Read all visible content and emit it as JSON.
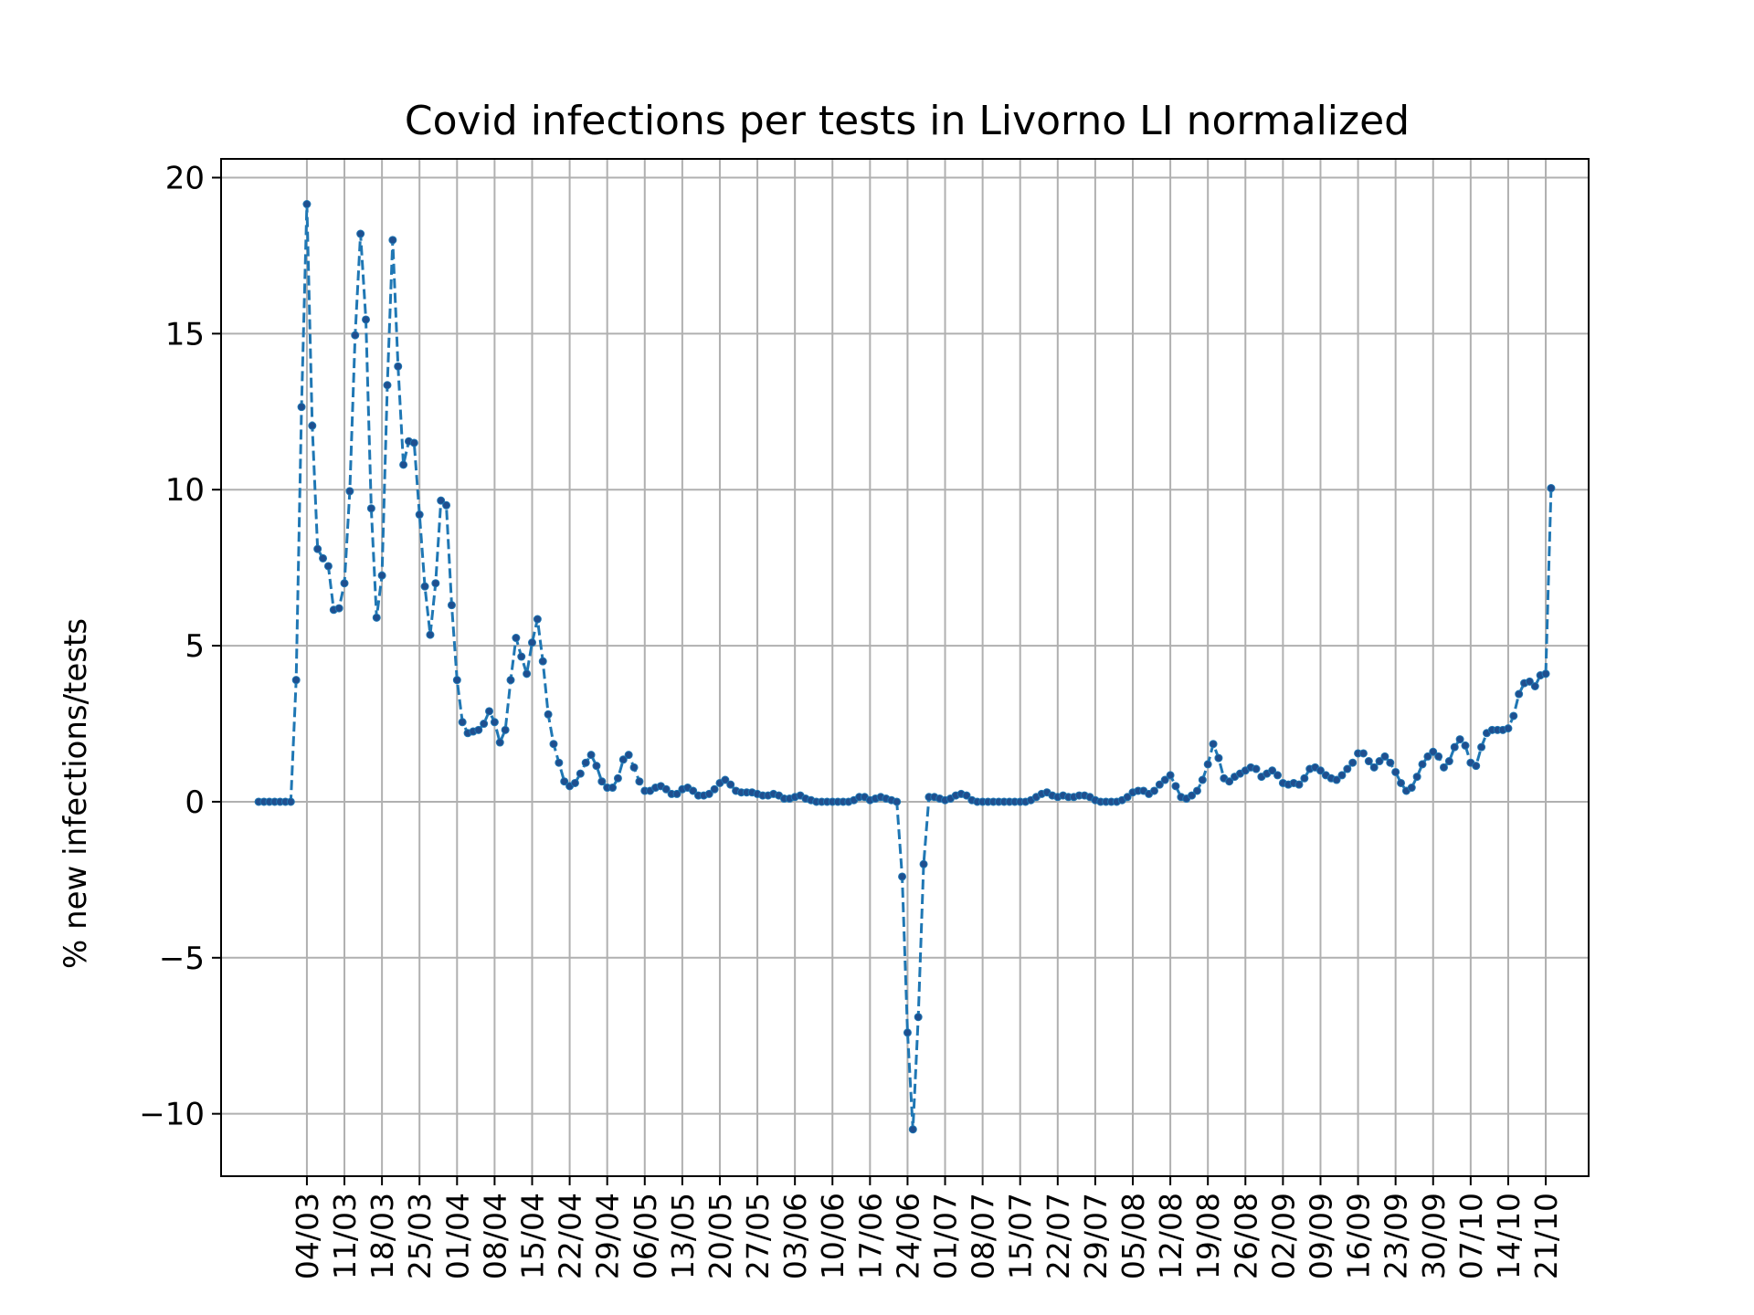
{
  "chart_data": {
    "type": "line",
    "title": "Covid infections per tests in Livorno LI normalized",
    "xlabel": "",
    "ylabel": "% new infections/tests",
    "ylim": [
      -12.0,
      20.6
    ],
    "xlim": [
      "2020-02-17",
      "2020-10-29"
    ],
    "grid": true,
    "line_style": "dashed",
    "marker": "dot",
    "colors": {
      "line": "#1f77b4",
      "marker": "#1f4f8f",
      "grid": "#b0b0b0"
    },
    "yticks": [
      -10,
      -5,
      0,
      5,
      10,
      15,
      20
    ],
    "ytick_labels": [
      "−10",
      "−5",
      "0",
      "5",
      "10",
      "15",
      "20"
    ],
    "xticks": [
      "2020-03-04",
      "2020-03-11",
      "2020-03-18",
      "2020-03-25",
      "2020-04-01",
      "2020-04-08",
      "2020-04-15",
      "2020-04-22",
      "2020-04-29",
      "2020-05-06",
      "2020-05-13",
      "2020-05-20",
      "2020-05-27",
      "2020-06-03",
      "2020-06-10",
      "2020-06-17",
      "2020-06-24",
      "2020-07-01",
      "2020-07-08",
      "2020-07-15",
      "2020-07-22",
      "2020-07-29",
      "2020-08-05",
      "2020-08-12",
      "2020-08-19",
      "2020-08-26",
      "2020-09-02",
      "2020-09-09",
      "2020-09-16",
      "2020-09-23",
      "2020-09-30",
      "2020-10-07",
      "2020-10-14",
      "2020-10-21"
    ],
    "xtick_labels": [
      "04/03",
      "11/03",
      "18/03",
      "25/03",
      "01/04",
      "08/04",
      "15/04",
      "22/04",
      "29/04",
      "06/05",
      "13/05",
      "20/05",
      "27/05",
      "03/06",
      "10/06",
      "17/06",
      "24/06",
      "01/07",
      "08/07",
      "15/07",
      "22/07",
      "29/07",
      "05/08",
      "12/08",
      "19/08",
      "26/08",
      "02/09",
      "09/09",
      "16/09",
      "23/09",
      "30/09",
      "07/10",
      "14/10",
      "21/10"
    ],
    "series": [
      {
        "x_start": "2020-02-24",
        "x_step_days": 1,
        "values": [
          0,
          0,
          0,
          0,
          0,
          0,
          0,
          3.9,
          12.65,
          19.15,
          12.05,
          8.1,
          7.8,
          7.55,
          6.15,
          6.2,
          7,
          9.95,
          14.95,
          18.2,
          15.45,
          9.4,
          5.9,
          7.25,
          13.35,
          18,
          13.95,
          10.8,
          11.55,
          11.5,
          9.2,
          6.9,
          5.35,
          7,
          9.65,
          9.5,
          6.3,
          3.9,
          2.55,
          2.2,
          2.25,
          2.3,
          2.5,
          2.9,
          2.55,
          1.9,
          2.3,
          3.9,
          5.25,
          4.65,
          4.1,
          5.1,
          5.85,
          4.5,
          2.8,
          1.85,
          1.25,
          0.65,
          0.5,
          0.6,
          0.9,
          1.25,
          1.5,
          1.15,
          0.65,
          0.45,
          0.45,
          0.75,
          1.35,
          1.5,
          1.1,
          0.65,
          0.35,
          0.35,
          0.45,
          0.5,
          0.4,
          0.25,
          0.25,
          0.4,
          0.45,
          0.35,
          0.2,
          0.2,
          0.25,
          0.4,
          0.6,
          0.7,
          0.55,
          0.35,
          0.3,
          0.3,
          0.3,
          0.25,
          0.2,
          0.2,
          0.25,
          0.2,
          0.1,
          0.1,
          0.15,
          0.2,
          0.1,
          0.05,
          0,
          0,
          0,
          0,
          0,
          0,
          0,
          0.05,
          0.15,
          0.15,
          0.05,
          0.1,
          0.15,
          0.1,
          0.05,
          0,
          -2.4,
          -7.4,
          -10.5,
          -6.9,
          -2,
          0.15,
          0.15,
          0.1,
          0.05,
          0.1,
          0.2,
          0.25,
          0.2,
          0.05,
          0,
          0,
          0,
          0,
          0,
          0,
          0,
          0,
          0,
          0,
          0.05,
          0.15,
          0.25,
          0.3,
          0.2,
          0.15,
          0.2,
          0.15,
          0.15,
          0.2,
          0.2,
          0.15,
          0.05,
          0,
          0,
          0,
          0,
          0.05,
          0.15,
          0.3,
          0.35,
          0.35,
          0.25,
          0.35,
          0.55,
          0.7,
          0.85,
          0.5,
          0.15,
          0.1,
          0.2,
          0.35,
          0.7,
          1.2,
          1.85,
          1.4,
          0.75,
          0.65,
          0.8,
          0.9,
          1,
          1.1,
          1.05,
          0.8,
          0.9,
          1,
          0.85,
          0.6,
          0.55,
          0.6,
          0.55,
          0.75,
          1.05,
          1.1,
          1,
          0.85,
          0.75,
          0.7,
          0.85,
          1.05,
          1.25,
          1.55,
          1.55,
          1.3,
          1.1,
          1.3,
          1.45,
          1.25,
          0.95,
          0.6,
          0.35,
          0.45,
          0.8,
          1.2,
          1.45,
          1.6,
          1.45,
          1.1,
          1.3,
          1.75,
          2,
          1.8,
          1.25,
          1.15,
          1.75,
          2.2,
          2.3,
          2.3,
          2.3,
          2.35,
          2.75,
          3.45,
          3.8,
          3.85,
          3.7,
          4.05,
          4.1,
          10.05
        ]
      }
    ]
  }
}
